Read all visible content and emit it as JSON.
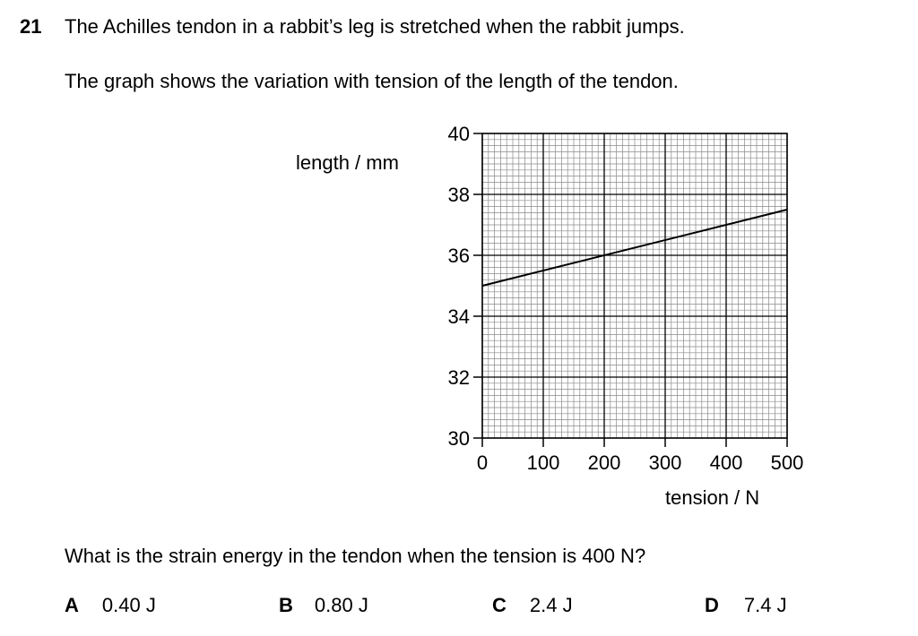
{
  "question": {
    "number": "21",
    "line1": "The Achilles tendon in a rabbit’s leg is stretched when the rabbit jumps.",
    "line2": "The graph shows the variation with tension of the length of the tendon.",
    "prompt": "What is the strain energy in the tendon when the tension is 400 N?"
  },
  "options": [
    {
      "letter": "A",
      "value": "0.40 J"
    },
    {
      "letter": "B",
      "value": "0.80 J"
    },
    {
      "letter": "C",
      "value": "2.4 J"
    },
    {
      "letter": "D",
      "value": "7.4 J"
    }
  ],
  "chart_data": {
    "type": "line",
    "xlabel": "tension / N",
    "ylabel": "length / mm",
    "xlim": [
      0,
      500
    ],
    "ylim": [
      30,
      40
    ],
    "x_ticks": [
      0,
      100,
      200,
      300,
      400,
      500
    ],
    "y_ticks": [
      30,
      32,
      34,
      36,
      38,
      40
    ],
    "x_tick_labels": [
      "0",
      "100",
      "200",
      "300",
      "400",
      "500"
    ],
    "y_tick_labels": [
      "30",
      "32",
      "34",
      "36",
      "38",
      "40"
    ],
    "grid": true,
    "series": [
      {
        "x": [
          0,
          500
        ],
        "y": [
          35.0,
          37.5
        ]
      }
    ]
  }
}
